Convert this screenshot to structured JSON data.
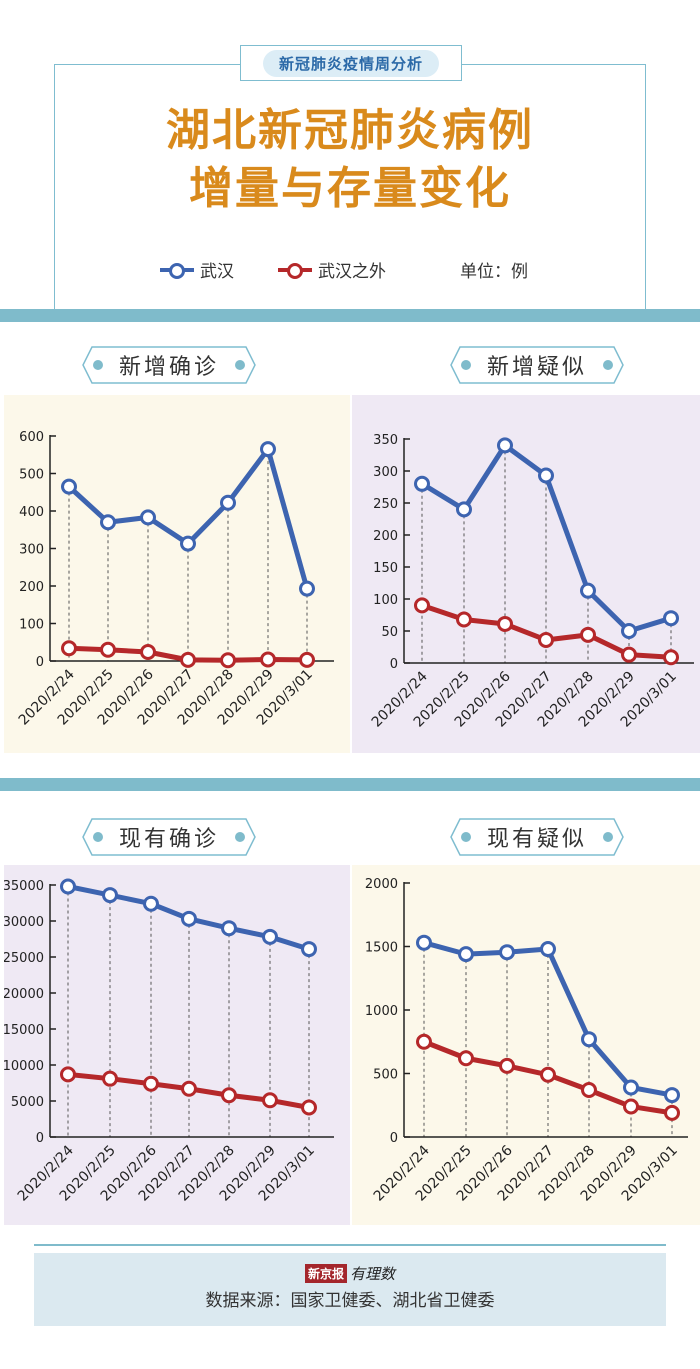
{
  "header": {
    "tag": "新冠肺炎疫情周分析",
    "title_line1": "湖北新冠肺炎病例",
    "title_line2": "增量与存量变化",
    "legend": [
      {
        "label": "武汉",
        "color": "#3d64b0"
      },
      {
        "label": "武汉之外",
        "color": "#b5282a"
      }
    ],
    "unit": "单位：例"
  },
  "colors": {
    "wuhan": "#3d64b0",
    "outside": "#b5282a",
    "title": "#d98a1c",
    "accent_bar": "#7fbbcb",
    "cream_bg": "#fcf8ea",
    "lavender_bg": "#efe9f4"
  },
  "panels": [
    {
      "label": "新增确诊"
    },
    {
      "label": "新增疑似"
    },
    {
      "label": "现有确诊"
    },
    {
      "label": "现有疑似"
    }
  ],
  "chart_data": [
    {
      "type": "line",
      "title": "新增确诊",
      "categories": [
        "2020/2/24",
        "2020/2/25",
        "2020/2/26",
        "2020/2/27",
        "2020/2/28",
        "2020/2/29",
        "2020/3/01"
      ],
      "series": [
        {
          "name": "武汉",
          "values": [
            465,
            370,
            383,
            313,
            422,
            565,
            193
          ]
        },
        {
          "name": "武汉之外",
          "values": [
            34,
            30,
            24,
            3,
            2,
            4,
            3
          ]
        }
      ],
      "yticks": [
        0,
        100,
        200,
        300,
        400,
        500,
        600
      ],
      "ylim": [
        0,
        600
      ],
      "xlabel": "",
      "ylabel": "",
      "grid": false,
      "legend_position": "top (shared)"
    },
    {
      "type": "line",
      "title": "新增疑似",
      "categories": [
        "2020/2/24",
        "2020/2/25",
        "2020/2/26",
        "2020/2/27",
        "2020/2/28",
        "2020/2/29",
        "2020/3/01"
      ],
      "series": [
        {
          "name": "武汉",
          "values": [
            280,
            240,
            340,
            293,
            113,
            50,
            70
          ]
        },
        {
          "name": "武汉之外",
          "values": [
            90,
            68,
            61,
            36,
            44,
            13,
            9
          ]
        }
      ],
      "yticks": [
        0,
        50,
        100,
        150,
        200,
        250,
        300,
        350
      ],
      "ylim": [
        0,
        350
      ],
      "xlabel": "",
      "ylabel": "",
      "grid": false,
      "legend_position": "top (shared)"
    },
    {
      "type": "line",
      "title": "现有确诊",
      "categories": [
        "2020/2/24",
        "2020/2/25",
        "2020/2/26",
        "2020/2/27",
        "2020/2/28",
        "2020/2/29",
        "2020/3/01"
      ],
      "series": [
        {
          "name": "武汉",
          "values": [
            34790,
            33600,
            32400,
            30300,
            29000,
            27800,
            26100
          ]
        },
        {
          "name": "武汉之外",
          "values": [
            8700,
            8100,
            7400,
            6700,
            5800,
            5100,
            4100
          ]
        }
      ],
      "yticks": [
        0,
        5000,
        10000,
        15000,
        20000,
        25000,
        30000,
        35000
      ],
      "ylim": [
        0,
        35000
      ],
      "xlabel": "",
      "ylabel": "",
      "grid": false,
      "legend_position": "top (shared)"
    },
    {
      "type": "line",
      "title": "现有疑似",
      "categories": [
        "2020/2/24",
        "2020/2/25",
        "2020/2/26",
        "2020/2/27",
        "2020/2/28",
        "2020/2/29",
        "2020/3/01"
      ],
      "series": [
        {
          "name": "武汉",
          "values": [
            1530,
            1440,
            1455,
            1480,
            770,
            390,
            330
          ]
        },
        {
          "name": "武汉之外",
          "values": [
            750,
            620,
            560,
            490,
            370,
            240,
            190
          ]
        }
      ],
      "yticks": [
        0,
        500,
        1000,
        1500,
        2000
      ],
      "ylim": [
        0,
        2000
      ],
      "xlabel": "",
      "ylabel": "",
      "grid": false,
      "legend_position": "top (shared)"
    }
  ],
  "footer": {
    "brand_box": "新京报",
    "brand_script": "有理数",
    "source": "数据来源：国家卫健委、湖北省卫健委"
  }
}
